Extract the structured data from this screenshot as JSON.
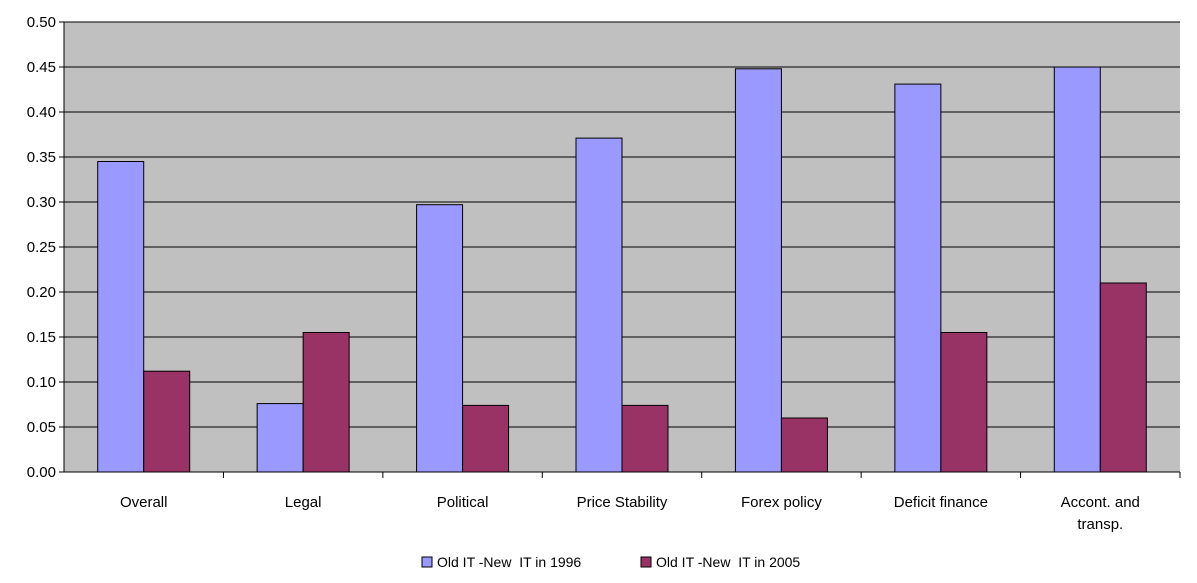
{
  "chart_data": {
    "type": "bar",
    "categories": [
      "Overall",
      "Legal",
      "Political",
      "Price Stability",
      "Forex policy",
      "Deficit finance",
      "Accont. and transp."
    ],
    "series": [
      {
        "name": "Old IT -New  IT in 1996",
        "values": [
          0.345,
          0.076,
          0.297,
          0.371,
          0.448,
          0.431,
          0.45
        ],
        "color": "#9999ff"
      },
      {
        "name": "Old IT -New  IT in 2005",
        "values": [
          0.112,
          0.155,
          0.074,
          0.074,
          0.06,
          0.155,
          0.21
        ],
        "color": "#993366"
      }
    ],
    "yticks": [
      "0.00",
      "0.05",
      "0.10",
      "0.15",
      "0.20",
      "0.25",
      "0.30",
      "0.35",
      "0.40",
      "0.45",
      "0.50"
    ],
    "ylim": [
      0,
      0.5
    ],
    "grid": true,
    "plot_background": "#c0c0c0",
    "legend_position": "bottom",
    "title": "",
    "xlabel": "",
    "ylabel": ""
  }
}
